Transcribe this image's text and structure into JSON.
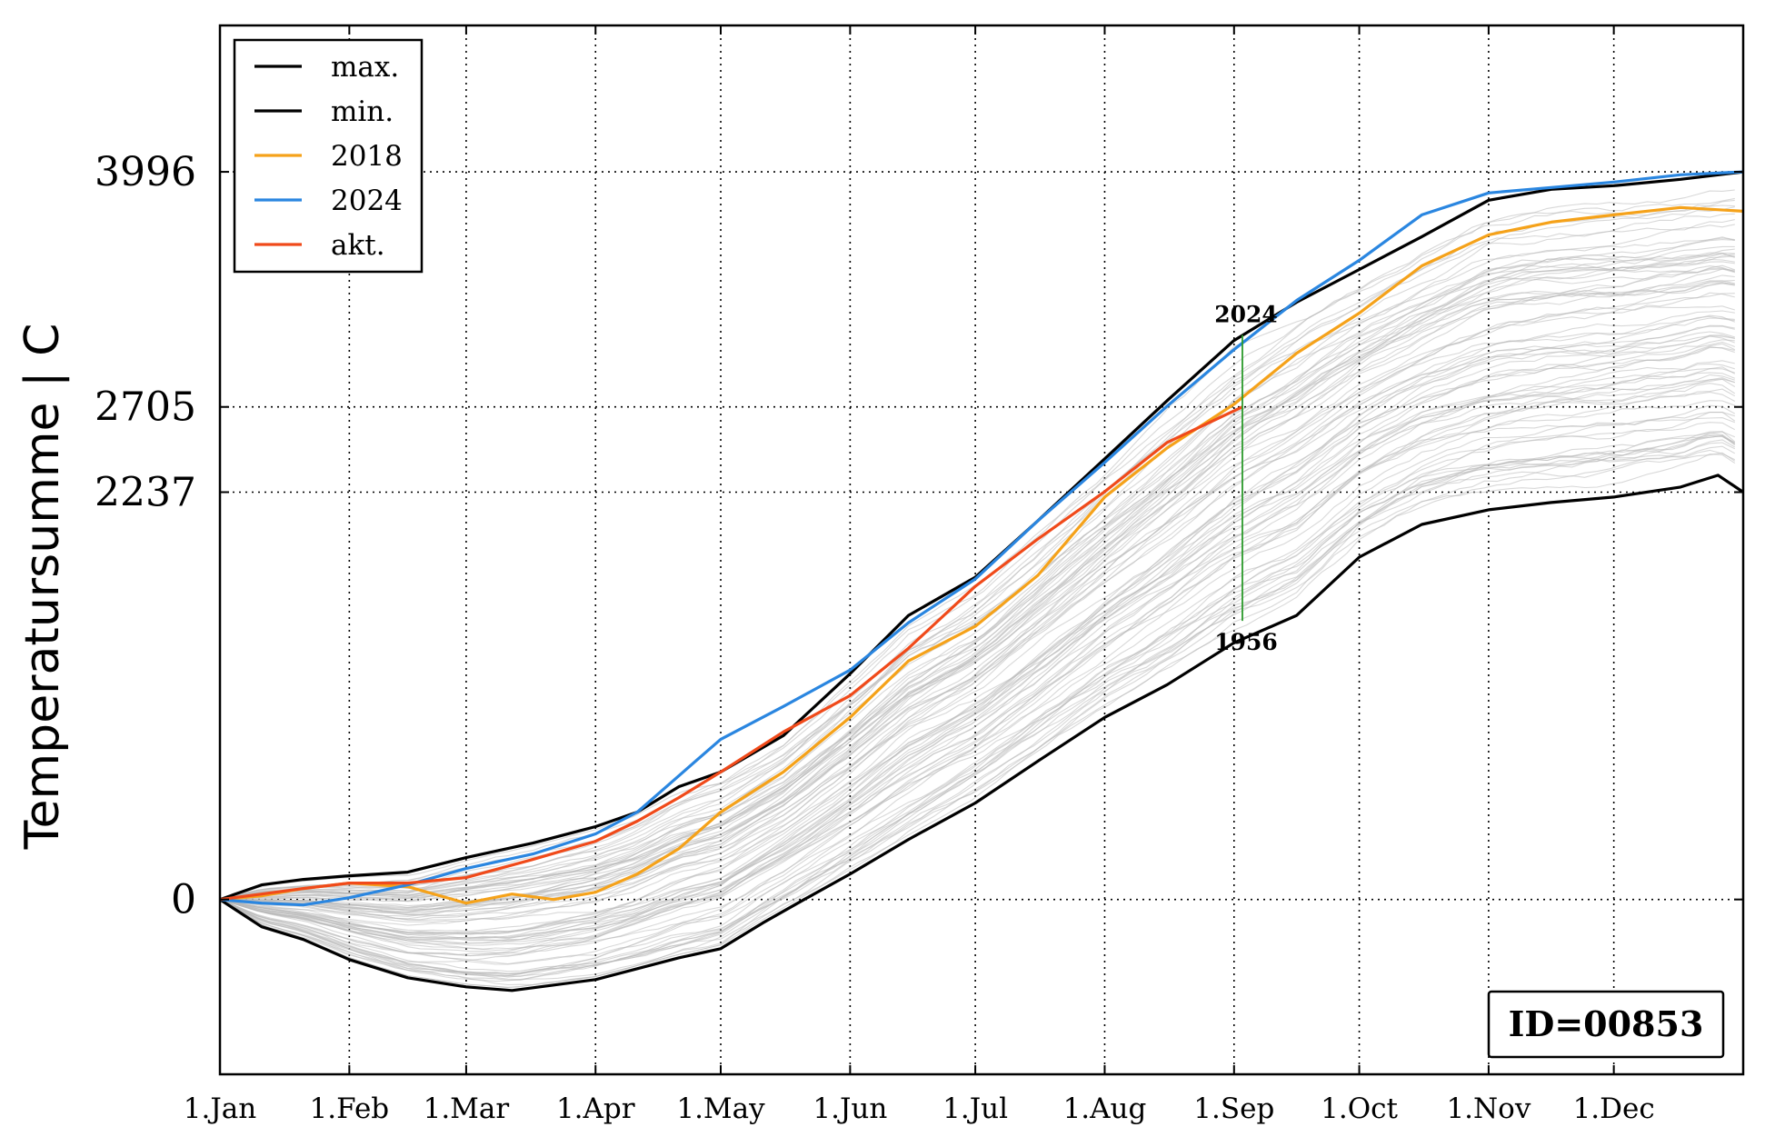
{
  "chart_data": {
    "type": "line",
    "title": "",
    "xlabel": "",
    "ylabel": "Temperatursumme | C",
    "x_range_days": [
      0,
      365
    ],
    "ylim": [
      -960,
      4800
    ],
    "grid": true,
    "legend_position": "top-left",
    "x_ticks": [
      {
        "day": 0,
        "label": "1.Jan"
      },
      {
        "day": 31,
        "label": "1.Feb"
      },
      {
        "day": 59,
        "label": "1.Mar"
      },
      {
        "day": 90,
        "label": "1.Apr"
      },
      {
        "day": 120,
        "label": "1.May"
      },
      {
        "day": 151,
        "label": "1.Jun"
      },
      {
        "day": 181,
        "label": "1.Jul"
      },
      {
        "day": 212,
        "label": "1.Aug"
      },
      {
        "day": 243,
        "label": "1.Sep"
      },
      {
        "day": 273,
        "label": "1.Oct"
      },
      {
        "day": 304,
        "label": "1.Nov"
      },
      {
        "day": 334,
        "label": "1.Dec"
      }
    ],
    "y_ticks": [
      {
        "value": 0,
        "label": "0"
      },
      {
        "value": 2237,
        "label": "2237"
      },
      {
        "value": 2705,
        "label": "2705"
      },
      {
        "value": 3996,
        "label": "3996"
      }
    ],
    "series": [
      {
        "name": "max.",
        "color": "#000000",
        "points": [
          [
            0,
            0
          ],
          [
            10,
            80
          ],
          [
            20,
            110
          ],
          [
            31,
            130
          ],
          [
            45,
            150
          ],
          [
            59,
            230
          ],
          [
            75,
            310
          ],
          [
            90,
            400
          ],
          [
            100,
            480
          ],
          [
            110,
            620
          ],
          [
            120,
            700
          ],
          [
            135,
            900
          ],
          [
            151,
            1240
          ],
          [
            165,
            1560
          ],
          [
            181,
            1770
          ],
          [
            196,
            2080
          ],
          [
            212,
            2420
          ],
          [
            227,
            2740
          ],
          [
            243,
            3070
          ],
          [
            258,
            3280
          ],
          [
            273,
            3460
          ],
          [
            288,
            3640
          ],
          [
            304,
            3840
          ],
          [
            319,
            3900
          ],
          [
            334,
            3920
          ],
          [
            350,
            3955
          ],
          [
            365,
            3996
          ]
        ]
      },
      {
        "name": "min.",
        "color": "#000000",
        "points": [
          [
            0,
            0
          ],
          [
            10,
            -150
          ],
          [
            20,
            -220
          ],
          [
            31,
            -330
          ],
          [
            45,
            -430
          ],
          [
            59,
            -480
          ],
          [
            70,
            -500
          ],
          [
            80,
            -470
          ],
          [
            90,
            -440
          ],
          [
            100,
            -380
          ],
          [
            110,
            -320
          ],
          [
            120,
            -270
          ],
          [
            130,
            -130
          ],
          [
            140,
            0
          ],
          [
            151,
            140
          ],
          [
            165,
            330
          ],
          [
            181,
            530
          ],
          [
            196,
            760
          ],
          [
            212,
            1000
          ],
          [
            227,
            1180
          ],
          [
            243,
            1410
          ],
          [
            258,
            1560
          ],
          [
            273,
            1880
          ],
          [
            288,
            2060
          ],
          [
            304,
            2140
          ],
          [
            319,
            2180
          ],
          [
            334,
            2210
          ],
          [
            350,
            2265
          ],
          [
            359,
            2330
          ],
          [
            365,
            2237
          ]
        ]
      },
      {
        "name": "2018",
        "color": "#f5a21a",
        "points": [
          [
            0,
            0
          ],
          [
            10,
            20
          ],
          [
            20,
            60
          ],
          [
            31,
            90
          ],
          [
            45,
            70
          ],
          [
            59,
            -20
          ],
          [
            70,
            30
          ],
          [
            80,
            0
          ],
          [
            90,
            40
          ],
          [
            100,
            140
          ],
          [
            110,
            280
          ],
          [
            120,
            480
          ],
          [
            135,
            700
          ],
          [
            151,
            1000
          ],
          [
            165,
            1310
          ],
          [
            181,
            1500
          ],
          [
            196,
            1780
          ],
          [
            212,
            2210
          ],
          [
            227,
            2480
          ],
          [
            243,
            2720
          ],
          [
            258,
            3000
          ],
          [
            273,
            3220
          ],
          [
            288,
            3480
          ],
          [
            304,
            3650
          ],
          [
            319,
            3720
          ],
          [
            334,
            3760
          ],
          [
            350,
            3800
          ],
          [
            365,
            3780
          ]
        ]
      },
      {
        "name": "2024",
        "color": "#2a86e0",
        "points": [
          [
            0,
            0
          ],
          [
            10,
            -20
          ],
          [
            20,
            -30
          ],
          [
            31,
            10
          ],
          [
            45,
            80
          ],
          [
            59,
            170
          ],
          [
            75,
            250
          ],
          [
            90,
            360
          ],
          [
            100,
            480
          ],
          [
            110,
            680
          ],
          [
            120,
            880
          ],
          [
            135,
            1060
          ],
          [
            151,
            1260
          ],
          [
            165,
            1520
          ],
          [
            181,
            1760
          ],
          [
            196,
            2080
          ],
          [
            212,
            2400
          ],
          [
            227,
            2710
          ],
          [
            243,
            3020
          ],
          [
            258,
            3290
          ],
          [
            273,
            3510
          ],
          [
            288,
            3760
          ],
          [
            304,
            3880
          ],
          [
            319,
            3910
          ],
          [
            334,
            3940
          ],
          [
            350,
            3980
          ],
          [
            365,
            3996
          ]
        ]
      },
      {
        "name": "akt.",
        "color": "#f04a1a",
        "points": [
          [
            0,
            0
          ],
          [
            10,
            30
          ],
          [
            20,
            60
          ],
          [
            31,
            90
          ],
          [
            45,
            90
          ],
          [
            59,
            120
          ],
          [
            75,
            220
          ],
          [
            90,
            320
          ],
          [
            100,
            430
          ],
          [
            110,
            560
          ],
          [
            120,
            700
          ],
          [
            135,
            920
          ],
          [
            151,
            1120
          ],
          [
            165,
            1380
          ],
          [
            181,
            1720
          ],
          [
            196,
            1980
          ],
          [
            212,
            2240
          ],
          [
            227,
            2510
          ],
          [
            245,
            2705
          ]
        ]
      }
    ],
    "background_series_color": "#b8b8b8",
    "annotations": [
      {
        "day": 245,
        "y_top": 3100,
        "y_bottom": 1530,
        "top_label": "2024",
        "bottom_label": "1956",
        "color": "#2a9a2a"
      }
    ],
    "id_label": "ID=00853"
  }
}
